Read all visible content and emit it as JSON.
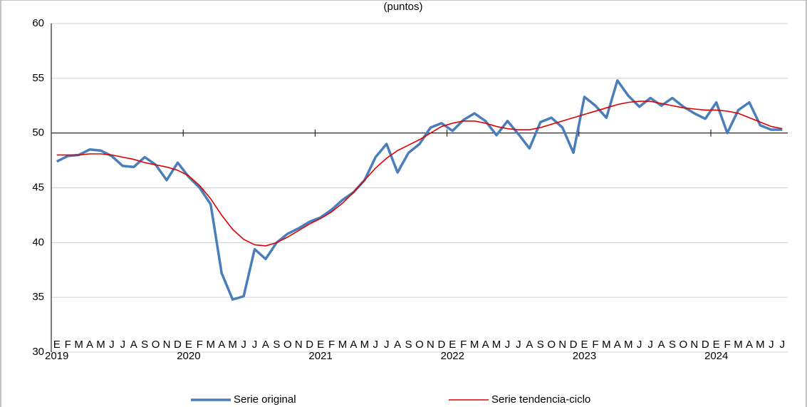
{
  "chart_data": {
    "type": "line",
    "title": "(puntos)",
    "categories": [
      {
        "month": "E",
        "year": "2019"
      },
      {
        "month": "F",
        "year": null
      },
      {
        "month": "M",
        "year": null
      },
      {
        "month": "A",
        "year": null
      },
      {
        "month": "M",
        "year": null
      },
      {
        "month": "J",
        "year": null
      },
      {
        "month": "J",
        "year": null
      },
      {
        "month": "A",
        "year": null
      },
      {
        "month": "S",
        "year": null
      },
      {
        "month": "O",
        "year": null
      },
      {
        "month": "N",
        "year": null
      },
      {
        "month": "D",
        "year": null
      },
      {
        "month": "E",
        "year": "2020"
      },
      {
        "month": "F",
        "year": null
      },
      {
        "month": "M",
        "year": null
      },
      {
        "month": "A",
        "year": null
      },
      {
        "month": "M",
        "year": null
      },
      {
        "month": "J",
        "year": null
      },
      {
        "month": "J",
        "year": null
      },
      {
        "month": "A",
        "year": null
      },
      {
        "month": "S",
        "year": null
      },
      {
        "month": "O",
        "year": null
      },
      {
        "month": "N",
        "year": null
      },
      {
        "month": "D",
        "year": null
      },
      {
        "month": "E",
        "year": "2021"
      },
      {
        "month": "F",
        "year": null
      },
      {
        "month": "M",
        "year": null
      },
      {
        "month": "A",
        "year": null
      },
      {
        "month": "M",
        "year": null
      },
      {
        "month": "J",
        "year": null
      },
      {
        "month": "J",
        "year": null
      },
      {
        "month": "A",
        "year": null
      },
      {
        "month": "S",
        "year": null
      },
      {
        "month": "O",
        "year": null
      },
      {
        "month": "N",
        "year": null
      },
      {
        "month": "D",
        "year": null
      },
      {
        "month": "E",
        "year": "2022"
      },
      {
        "month": "F",
        "year": null
      },
      {
        "month": "M",
        "year": null
      },
      {
        "month": "A",
        "year": null
      },
      {
        "month": "M",
        "year": null
      },
      {
        "month": "J",
        "year": null
      },
      {
        "month": "J",
        "year": null
      },
      {
        "month": "A",
        "year": null
      },
      {
        "month": "S",
        "year": null
      },
      {
        "month": "O",
        "year": null
      },
      {
        "month": "N",
        "year": null
      },
      {
        "month": "D",
        "year": null
      },
      {
        "month": "E",
        "year": "2023"
      },
      {
        "month": "F",
        "year": null
      },
      {
        "month": "M",
        "year": null
      },
      {
        "month": "A",
        "year": null
      },
      {
        "month": "M",
        "year": null
      },
      {
        "month": "J",
        "year": null
      },
      {
        "month": "J",
        "year": null
      },
      {
        "month": "A",
        "year": null
      },
      {
        "month": "S",
        "year": null
      },
      {
        "month": "O",
        "year": null
      },
      {
        "month": "N",
        "year": null
      },
      {
        "month": "D",
        "year": null
      },
      {
        "month": "E",
        "year": "2024"
      },
      {
        "month": "F",
        "year": null
      },
      {
        "month": "M",
        "year": null
      },
      {
        "month": "A",
        "year": null
      },
      {
        "month": "M",
        "year": null
      },
      {
        "month": "J",
        "year": null
      },
      {
        "month": "J",
        "year": null
      }
    ],
    "series": [
      {
        "name": "Serie original",
        "color": "#4a7ebb",
        "values": [
          47.4,
          47.9,
          48.0,
          48.5,
          48.4,
          47.9,
          47.0,
          46.9,
          47.8,
          47.1,
          45.7,
          47.3,
          46.0,
          45.0,
          43.5,
          37.2,
          34.8,
          35.1,
          39.4,
          38.5,
          40.0,
          40.8,
          41.3,
          41.9,
          42.3,
          43.0,
          43.9,
          44.6,
          45.7,
          47.8,
          49.0,
          46.4,
          48.2,
          49.0,
          50.5,
          50.9,
          50.2,
          51.2,
          51.8,
          51.1,
          49.8,
          51.1,
          49.9,
          48.6,
          51.0,
          51.4,
          50.5,
          48.2,
          53.3,
          52.5,
          51.4,
          54.8,
          53.4,
          52.4,
          53.2,
          52.5,
          53.2,
          52.4,
          51.8,
          51.3,
          52.8,
          50.0,
          52.1,
          52.8,
          50.7,
          50.3,
          50.3
        ]
      },
      {
        "name": "Serie tendencia-ciclo",
        "color": "#e00000",
        "values": [
          48.0,
          48.0,
          48.0,
          48.1,
          48.1,
          48.0,
          47.8,
          47.6,
          47.3,
          47.1,
          46.9,
          46.6,
          46.1,
          45.2,
          44.0,
          42.5,
          41.2,
          40.3,
          39.8,
          39.7,
          40.0,
          40.5,
          41.1,
          41.7,
          42.2,
          42.8,
          43.6,
          44.6,
          45.7,
          46.8,
          47.7,
          48.4,
          48.9,
          49.4,
          50.0,
          50.6,
          50.9,
          51.1,
          51.1,
          50.9,
          50.6,
          50.4,
          50.3,
          50.3,
          50.5,
          50.8,
          51.1,
          51.4,
          51.7,
          52.0,
          52.3,
          52.6,
          52.8,
          52.9,
          52.9,
          52.7,
          52.5,
          52.3,
          52.2,
          52.1,
          52.1,
          52.0,
          51.8,
          51.4,
          51.0,
          50.6,
          50.4
        ]
      }
    ],
    "ylim": [
      30,
      60
    ],
    "yticks": [
      30,
      35,
      40,
      45,
      50,
      55,
      60
    ],
    "grid": true,
    "x_axis_crosses": 50,
    "legend": "bottom"
  }
}
